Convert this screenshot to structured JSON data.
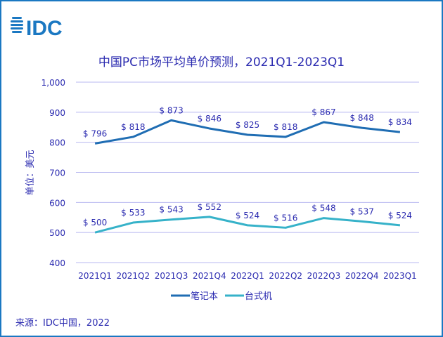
{
  "logo": {
    "text": "IDC"
  },
  "source": "来源：IDC中国，2022",
  "colors": {
    "notebook": "#1f6db3",
    "desktop": "#36b2c9",
    "text": "#2b2bb0",
    "grid": "#b8b8f0",
    "border": "#1b78c2"
  },
  "chart_data": {
    "type": "line",
    "title": "中国PC市场平均单价预测，2021Q1-2023Q1",
    "ylabel": "单位：美元",
    "xlabel": "",
    "ylim": [
      400,
      1000
    ],
    "yticks": [
      400,
      500,
      600,
      700,
      800,
      900,
      1000
    ],
    "ytick_labels": [
      "400",
      "500",
      "600",
      "700",
      "800",
      "900",
      "1,000"
    ],
    "grid": true,
    "legend_position": "bottom",
    "categories": [
      "2021Q1",
      "2021Q2",
      "2021Q3",
      "2021Q4",
      "2022Q1",
      "2022Q2",
      "2022Q3",
      "2022Q4",
      "2023Q1"
    ],
    "series": [
      {
        "name": "笔记本",
        "values": [
          796,
          818,
          873,
          846,
          825,
          818,
          867,
          848,
          834
        ],
        "labels": [
          "$ 796",
          "$ 818",
          "$ 873",
          "$ 846",
          "$ 825",
          "$ 818",
          "$ 867",
          "$ 848",
          "$ 834"
        ]
      },
      {
        "name": "台式机",
        "values": [
          500,
          533,
          543,
          552,
          524,
          516,
          548,
          537,
          524
        ],
        "labels": [
          "$ 500",
          "$ 533",
          "$ 543",
          "$ 552",
          "$ 524",
          "$ 516",
          "$ 548",
          "$ 537",
          "$ 524"
        ]
      }
    ]
  }
}
